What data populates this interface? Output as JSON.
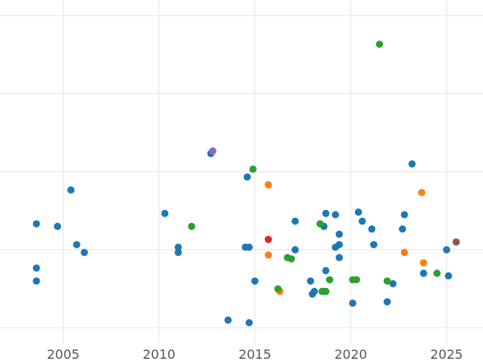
{
  "chart_data": {
    "type": "scatter",
    "title": "",
    "xlabel": "",
    "ylabel": "",
    "xlim": [
      2001.7,
      2026.9
    ],
    "ylim": [
      -0.6,
      12.6
    ],
    "grid": true,
    "legend": "none",
    "x_ticks": [
      2005,
      2010,
      2015,
      2020,
      2025
    ],
    "y_grid": [
      0,
      3,
      6,
      9,
      12
    ],
    "series": [
      {
        "color": "#1f77b4",
        "points": [
          [
            2003.6,
            4.0
          ],
          [
            2003.6,
            2.3
          ],
          [
            2003.6,
            1.8
          ],
          [
            2004.7,
            3.9
          ],
          [
            2005.4,
            5.3
          ],
          [
            2005.7,
            3.2
          ],
          [
            2006.1,
            2.9
          ],
          [
            2010.3,
            4.4
          ],
          [
            2011.0,
            3.1
          ],
          [
            2011.0,
            2.9
          ],
          [
            2012.7,
            6.7
          ],
          [
            2013.6,
            0.3
          ],
          [
            2014.5,
            3.1
          ],
          [
            2014.7,
            3.1
          ],
          [
            2014.6,
            5.8
          ],
          [
            2014.7,
            0.2
          ],
          [
            2015.0,
            1.8
          ],
          [
            2017.1,
            4.1
          ],
          [
            2017.1,
            3.0
          ],
          [
            2017.9,
            1.8
          ],
          [
            2018.0,
            1.3
          ],
          [
            2018.1,
            1.4
          ],
          [
            2018.6,
            1.4
          ],
          [
            2018.6,
            3.9
          ],
          [
            2018.7,
            4.4
          ],
          [
            2018.7,
            2.2
          ],
          [
            2019.2,
            4.35
          ],
          [
            2019.2,
            3.1
          ],
          [
            2019.4,
            3.6
          ],
          [
            2019.4,
            3.2
          ],
          [
            2019.4,
            2.7
          ],
          [
            2020.1,
            0.95
          ],
          [
            2020.4,
            4.45
          ],
          [
            2020.6,
            4.1
          ],
          [
            2021.1,
            3.8
          ],
          [
            2021.2,
            3.2
          ],
          [
            2021.9,
            1.0
          ],
          [
            2022.2,
            1.7
          ],
          [
            2022.7,
            3.8
          ],
          [
            2022.8,
            4.35
          ],
          [
            2023.2,
            6.3
          ],
          [
            2023.8,
            2.1
          ],
          [
            2025.0,
            3.0
          ],
          [
            2025.1,
            2.0
          ]
        ]
      },
      {
        "color": "#ff7f0e",
        "points": [
          [
            2015.7,
            5.5
          ],
          [
            2015.7,
            2.8
          ],
          [
            2016.3,
            1.4
          ],
          [
            2022.8,
            2.9
          ],
          [
            2023.7,
            5.2
          ],
          [
            2023.8,
            2.5
          ]
        ]
      },
      {
        "color": "#2ca02c",
        "points": [
          [
            2011.7,
            3.9
          ],
          [
            2014.9,
            6.1
          ],
          [
            2016.2,
            1.5
          ],
          [
            2016.7,
            2.7
          ],
          [
            2016.9,
            2.65
          ],
          [
            2018.4,
            4.0
          ],
          [
            2018.5,
            1.4
          ],
          [
            2018.7,
            1.4
          ],
          [
            2018.9,
            1.85
          ],
          [
            2020.1,
            1.85
          ],
          [
            2020.3,
            1.85
          ],
          [
            2021.5,
            10.9
          ],
          [
            2021.9,
            1.8
          ],
          [
            2024.5,
            2.1
          ]
        ]
      },
      {
        "color": "#d62728",
        "points": [
          [
            2015.7,
            3.4
          ]
        ]
      },
      {
        "color": "#9467bd",
        "points": [
          [
            2012.8,
            6.8
          ]
        ]
      },
      {
        "color": "#8c564b",
        "points": [
          [
            2025.5,
            3.3
          ]
        ]
      }
    ]
  }
}
